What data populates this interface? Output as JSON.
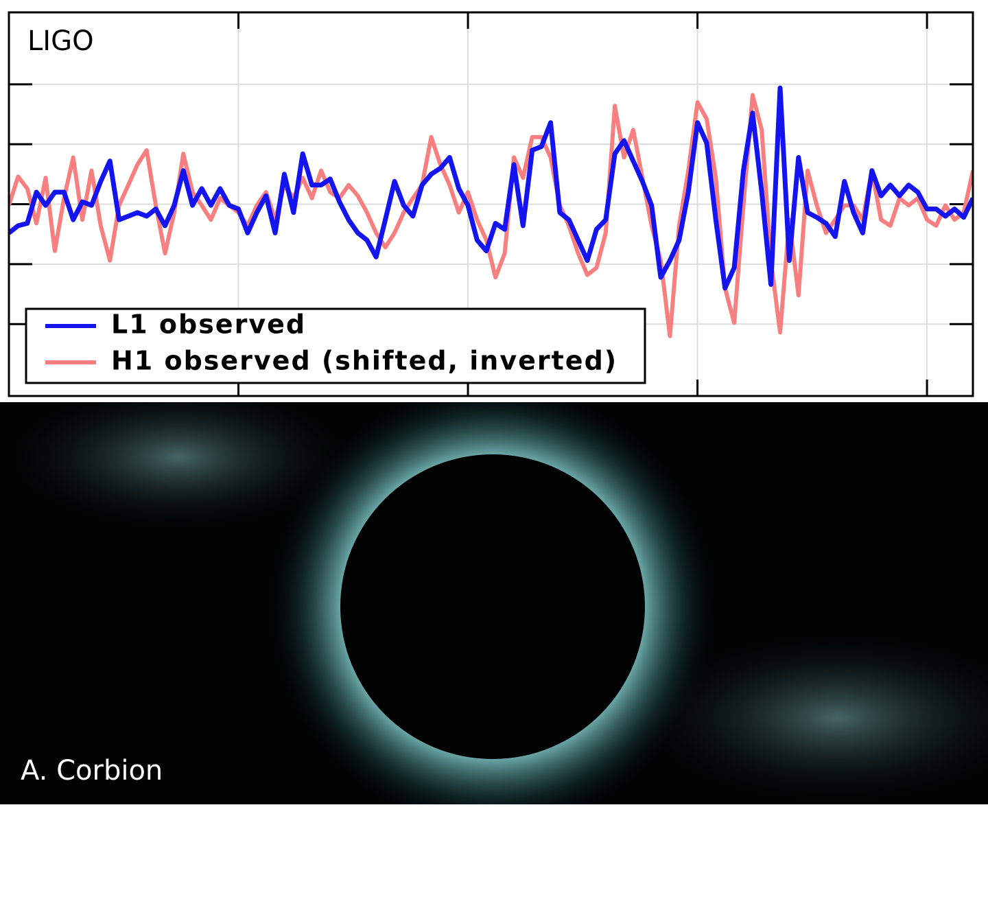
{
  "chart_data": {
    "type": "line",
    "annotation": "LIGO",
    "grid": true,
    "legend": "lower left",
    "xlim": [
      0,
      105
    ],
    "xticks": [
      25,
      50,
      75,
      100
    ],
    "ylim": [
      -1.6,
      1.6
    ],
    "yticks": [
      -1,
      -0.5,
      0,
      0.5,
      1
    ],
    "x": [
      0,
      1,
      2,
      3,
      4,
      5,
      6,
      7,
      8,
      9,
      10,
      11,
      12,
      13,
      14,
      15,
      16,
      17,
      18,
      19,
      20,
      21,
      22,
      23,
      24,
      25,
      26,
      27,
      28,
      29,
      30,
      31,
      32,
      33,
      34,
      35,
      36,
      37,
      38,
      39,
      40,
      41,
      42,
      43,
      44,
      45,
      46,
      47,
      48,
      49,
      50,
      51,
      52,
      53,
      54,
      55,
      56,
      57,
      58,
      59,
      60,
      61,
      62,
      63,
      64,
      65,
      66,
      67,
      68,
      69,
      70,
      71,
      72,
      73,
      74,
      75,
      76,
      77,
      78,
      79,
      80,
      81,
      82,
      83,
      84,
      85,
      86,
      87,
      88,
      89,
      90,
      91,
      92,
      93,
      94,
      95,
      96,
      97,
      98,
      99,
      100,
      101,
      102,
      103,
      104,
      105
    ],
    "series": [
      {
        "name": "H1 observed (shifted, inverted)",
        "color": "#f87f7f",
        "values": [
          -0.01,
          0.23,
          0.13,
          -0.16,
          0.22,
          -0.39,
          0.05,
          0.39,
          -0.13,
          0.28,
          -0.18,
          -0.47,
          -0.01,
          0.16,
          0.33,
          0.45,
          -0.01,
          -0.41,
          -0.07,
          0.42,
          0.1,
          -0.01,
          -0.13,
          0.05,
          -0.01,
          -0.07,
          -0.18,
          -0.01,
          0.1,
          -0.13,
          0.16,
          0.05,
          0.22,
          0.05,
          0.28,
          0.1,
          0.05,
          0.16,
          0.07,
          -0.07,
          -0.24,
          -0.36,
          -0.24,
          -0.07,
          0.05,
          0.16,
          0.56,
          0.33,
          0.16,
          -0.07,
          0.1,
          -0.13,
          -0.3,
          -0.61,
          -0.41,
          0.39,
          0.22,
          0.56,
          0.56,
          0.39,
          -0.01,
          -0.18,
          -0.41,
          -0.59,
          -0.53,
          -0.24,
          0.82,
          0.39,
          0.62,
          0.22,
          -0.18,
          -0.47,
          -1.1,
          -0.18,
          0.28,
          0.85,
          0.71,
          0.22,
          -0.7,
          -0.99,
          -0.01,
          0.91,
          0.62,
          -0.47,
          -1.07,
          -0.13,
          -0.76,
          0.28,
          -0.01,
          -0.24,
          -0.13,
          -0.01,
          -0.01,
          -0.13,
          0.28,
          -0.13,
          -0.18,
          0.05,
          -0.01,
          0.05,
          -0.13,
          -0.18,
          -0.01,
          -0.13,
          -0.07,
          0.28
        ]
      },
      {
        "name": "L1 observed",
        "color": "#1414f0",
        "values": [
          -0.24,
          -0.18,
          -0.16,
          0.1,
          -0.01,
          0.1,
          0.1,
          -0.13,
          0.02,
          -0.01,
          0.19,
          0.36,
          -0.13,
          -0.1,
          -0.07,
          -0.1,
          -0.04,
          -0.18,
          -0.01,
          0.28,
          -0.01,
          0.13,
          -0.01,
          0.13,
          -0.01,
          -0.04,
          -0.24,
          -0.07,
          0.07,
          -0.24,
          0.25,
          -0.07,
          0.42,
          0.16,
          0.16,
          0.21,
          0.02,
          -0.13,
          -0.24,
          -0.3,
          -0.44,
          -0.13,
          0.19,
          -0.01,
          -0.1,
          0.16,
          0.25,
          0.3,
          0.39,
          0.13,
          -0.01,
          -0.3,
          -0.39,
          -0.16,
          -0.21,
          0.33,
          -0.18,
          0.45,
          0.48,
          0.68,
          -0.07,
          -0.13,
          -0.3,
          -0.47,
          -0.21,
          -0.13,
          0.42,
          0.53,
          0.36,
          0.19,
          -0.01,
          -0.61,
          -0.47,
          -0.3,
          0.1,
          0.68,
          0.51,
          -0.13,
          -0.7,
          -0.53,
          0.28,
          0.76,
          0.1,
          -0.67,
          0.97,
          -0.47,
          0.39,
          -0.07,
          -0.11,
          -0.16,
          -0.27,
          0.19,
          -0.07,
          -0.24,
          0.28,
          0.07,
          0.16,
          0.07,
          0.16,
          0.1,
          -0.04,
          -0.04,
          -0.1,
          -0.04,
          -0.11,
          0.05
        ]
      }
    ]
  },
  "image": {
    "caption": "A. Corbion"
  }
}
